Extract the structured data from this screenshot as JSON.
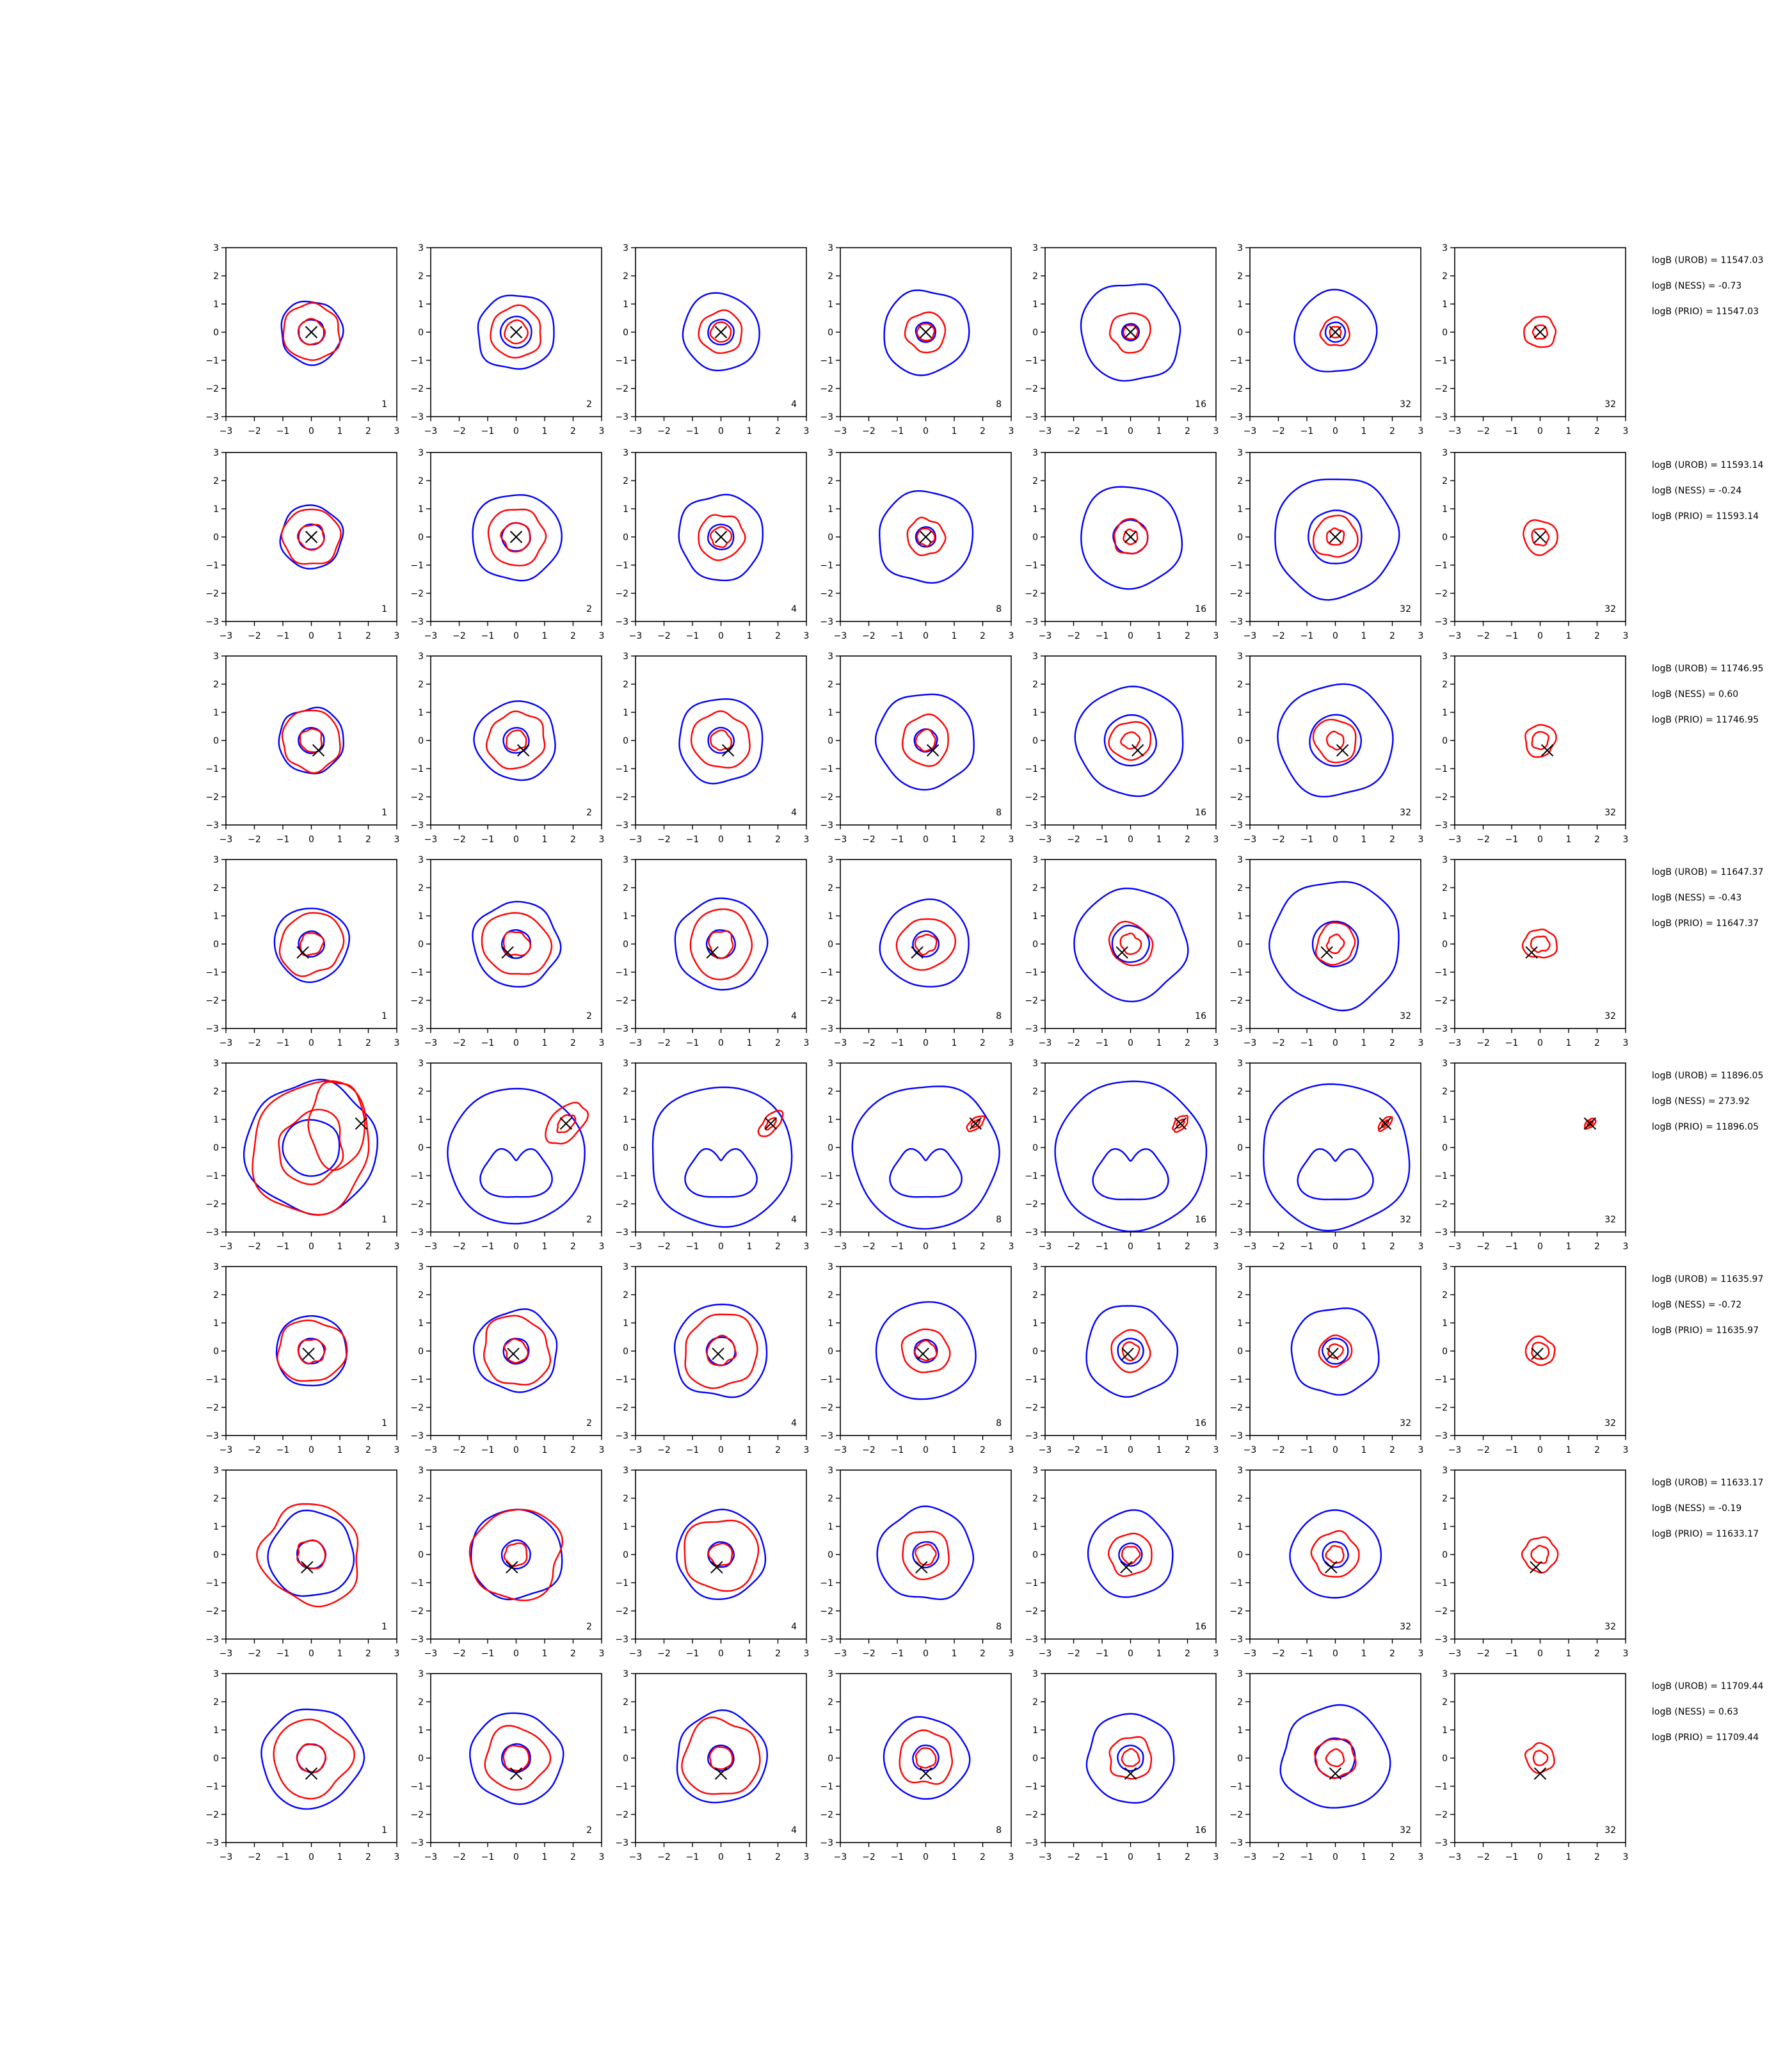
{
  "chart_data": {
    "type": "contour-grid",
    "xlim": [
      -3,
      3
    ],
    "ylim": [
      -3,
      3
    ],
    "ticks": [
      -3,
      -2,
      -1,
      0,
      1,
      2,
      3
    ],
    "tick_labels": [
      "−3",
      "−2",
      "−1",
      "0",
      "1",
      "2",
      "3"
    ],
    "grid": false,
    "series_colors": {
      "blue_contours": "#0000ff",
      "red_contours": "#ff0000",
      "marker": "#000000"
    },
    "column_labels": [
      "1",
      "2",
      "4",
      "8",
      "16",
      "32",
      "32"
    ],
    "rows": [
      {
        "marker": [
          0.0,
          0.0
        ],
        "annotations": [
          "logB (UROB) = 11547.03",
          "logB (NESS) = -0.73",
          "logB (PRIO) = 11547.03"
        ],
        "panels": [
          {
            "blue": [
              0.45,
              1.1
            ],
            "red": [
              0.45,
              1.0
            ],
            "blue_shape": "circle"
          },
          {
            "blue": [
              0.55,
              1.35
            ],
            "red": [
              0.4,
              0.9
            ],
            "blue_shape": "circle"
          },
          {
            "blue": [
              0.45,
              1.35
            ],
            "red": [
              0.35,
              0.75
            ],
            "blue_shape": "circle"
          },
          {
            "blue": [
              0.35,
              1.5
            ],
            "red": [
              0.3,
              0.7
            ],
            "blue_shape": "circle"
          },
          {
            "blue": [
              0.3,
              1.75
            ],
            "red": [
              0.25,
              0.7
            ],
            "blue_shape": "circle"
          },
          {
            "blue": [
              0.35,
              1.45
            ],
            "red": [
              0.2,
              0.5
            ],
            "blue_shape": "circle"
          },
          {
            "blue": [],
            "red": [
              0.25,
              0.55
            ],
            "blue_shape": "none"
          }
        ]
      },
      {
        "marker": [
          0.0,
          0.0
        ],
        "annotations": [
          "logB (UROB) = 11593.14",
          "logB (NESS) = -0.24",
          "logB (PRIO) = 11593.14"
        ],
        "panels": [
          {
            "blue": [
              0.45,
              1.1
            ],
            "red": [
              0.45,
              1.0
            ],
            "blue_shape": "circle"
          },
          {
            "blue": [
              0.5,
              1.55
            ],
            "red": [
              0.5,
              1.0
            ],
            "blue_shape": "circle"
          },
          {
            "blue": [
              0.45,
              1.5
            ],
            "red": [
              0.35,
              0.8
            ],
            "blue_shape": "circle"
          },
          {
            "blue": [
              0.35,
              1.65
            ],
            "red": [
              0.3,
              0.65
            ],
            "blue_shape": "circle"
          },
          {
            "blue": [
              0.6,
              1.8
            ],
            "red": [
              0.25,
              0.6
            ],
            "blue_shape": "circle"
          },
          {
            "blue": [
              0.95,
              2.15
            ],
            "red": [
              0.3,
              0.75
            ],
            "blue_shape": "circle"
          },
          {
            "blue": [],
            "red": [
              0.3,
              0.6
            ],
            "blue_shape": "none"
          }
        ]
      },
      {
        "marker": [
          0.25,
          -0.35
        ],
        "annotations": [
          "logB (UROB) = 11746.95",
          "logB (NESS) = 0.60",
          "logB (PRIO) = 11746.95"
        ],
        "panels": [
          {
            "blue": [
              0.45,
              1.15
            ],
            "red": [
              0.4,
              1.05
            ],
            "blue_shape": "circle"
          },
          {
            "blue": [
              0.45,
              1.4
            ],
            "red": [
              0.35,
              1.0
            ],
            "blue_shape": "circle"
          },
          {
            "blue": [
              0.45,
              1.5
            ],
            "red": [
              0.35,
              1.0
            ],
            "blue_shape": "circle"
          },
          {
            "blue": [
              0.4,
              1.7
            ],
            "red": [
              0.35,
              0.85
            ],
            "blue_shape": "circle"
          },
          {
            "blue": [
              0.9,
              1.9
            ],
            "red": [
              0.3,
              0.7
            ],
            "blue_shape": "circle"
          },
          {
            "blue": [
              0.9,
              2.0
            ],
            "red": [
              0.3,
              0.75
            ],
            "blue_shape": "circle"
          },
          {
            "blue": [],
            "red": [
              0.3,
              0.55
            ],
            "blue_shape": "none"
          }
        ]
      },
      {
        "marker": [
          -0.3,
          -0.3
        ],
        "annotations": [
          "logB (UROB) = 11647.37",
          "logB (NESS) = -0.43",
          "logB (PRIO) = 11647.37"
        ],
        "panels": [
          {
            "blue": [
              0.45,
              1.3
            ],
            "red": [
              0.4,
              1.1
            ],
            "blue_shape": "circle"
          },
          {
            "blue": [
              0.5,
              1.5
            ],
            "red": [
              0.45,
              1.15
            ],
            "blue_shape": "circle"
          },
          {
            "blue": [
              0.5,
              1.6
            ],
            "red": [
              0.45,
              1.15
            ],
            "blue_shape": "circle"
          },
          {
            "blue": [
              0.45,
              1.55
            ],
            "red": [
              0.35,
              0.95
            ],
            "blue_shape": "circle"
          },
          {
            "blue": [
              0.65,
              1.95
            ],
            "red": [
              0.35,
              0.75
            ],
            "blue_shape": "circle"
          },
          {
            "blue": [
              0.8,
              2.25
            ],
            "red": [
              0.3,
              0.7
            ],
            "blue_shape": "circle"
          },
          {
            "blue": [],
            "red": [
              0.3,
              0.55
            ],
            "blue_shape": "none"
          }
        ]
      },
      {
        "marker": [
          1.75,
          0.85
        ],
        "annotations": [
          "logB (UROB) = 11896.05",
          "logB (NESS) = 273.92",
          "logB (PRIO) = 11896.05"
        ],
        "panels": [
          {
            "blue": [
              1.0,
              2.3
            ],
            "red": [
              1.2,
              2.2
            ],
            "blue_shape": "circle"
          },
          {
            "blue": [
              1.0,
              2.4
            ],
            "red": [
              0.35,
              0.8
            ],
            "blue_shape": "bean"
          },
          {
            "blue": [
              1.0,
              2.5
            ],
            "red": [
              0.2,
              0.45
            ],
            "blue_shape": "bean"
          },
          {
            "blue": [
              1.0,
              2.55
            ],
            "red": [
              0.15,
              0.3
            ],
            "blue_shape": "bean"
          },
          {
            "blue": [
              1.05,
              2.65
            ],
            "red": [
              0.15,
              0.3
            ],
            "blue_shape": "bean"
          },
          {
            "blue": [
              1.05,
              2.6
            ],
            "red": [
              0.12,
              0.25
            ],
            "blue_shape": "bean"
          },
          {
            "blue": [],
            "red": [
              0.1,
              0.2
            ],
            "blue_shape": "none"
          }
        ]
      },
      {
        "marker": [
          -0.1,
          -0.1
        ],
        "annotations": [
          "logB (UROB) = 11635.97",
          "logB (NESS) = -0.72",
          "logB (PRIO) = 11635.97"
        ],
        "panels": [
          {
            "blue": [
              0.45,
              1.25
            ],
            "red": [
              0.45,
              1.15
            ],
            "blue_shape": "circle"
          },
          {
            "blue": [
              0.45,
              1.45
            ],
            "red": [
              0.4,
              1.2
            ],
            "blue_shape": "circle"
          },
          {
            "blue": [
              0.5,
              1.65
            ],
            "red": [
              0.5,
              1.3
            ],
            "blue_shape": "circle"
          },
          {
            "blue": [
              0.4,
              1.75
            ],
            "red": [
              0.35,
              0.8
            ],
            "blue_shape": "circle"
          },
          {
            "blue": [
              0.45,
              1.6
            ],
            "red": [
              0.3,
              0.7
            ],
            "blue_shape": "circle"
          },
          {
            "blue": [
              0.45,
              1.55
            ],
            "red": [
              0.25,
              0.55
            ],
            "blue_shape": "circle"
          },
          {
            "blue": [],
            "red": [
              0.3,
              0.5
            ],
            "blue_shape": "none"
          }
        ]
      },
      {
        "marker": [
          -0.15,
          -0.45
        ],
        "annotations": [
          "logB (UROB) = 11633.17",
          "logB (NESS) = -0.19",
          "logB (PRIO) = 11633.17"
        ],
        "panels": [
          {
            "blue": [
              0.5,
              1.5
            ],
            "red": [
              0.5,
              1.75
            ],
            "blue_shape": "circle"
          },
          {
            "blue": [
              0.5,
              1.6
            ],
            "red": [
              0.4,
              1.6
            ],
            "blue_shape": "circle"
          },
          {
            "blue": [
              0.45,
              1.55
            ],
            "red": [
              0.4,
              1.3
            ],
            "blue_shape": "circle"
          },
          {
            "blue": [
              0.45,
              1.65
            ],
            "red": [
              0.35,
              0.85
            ],
            "blue_shape": "circle"
          },
          {
            "blue": [
              0.4,
              1.5
            ],
            "red": [
              0.3,
              0.75
            ],
            "blue_shape": "circle"
          },
          {
            "blue": [
              0.45,
              1.55
            ],
            "red": [
              0.3,
              0.8
            ],
            "blue_shape": "circle"
          },
          {
            "blue": [],
            "red": [
              0.3,
              0.6
            ],
            "blue_shape": "none"
          }
        ]
      },
      {
        "marker": [
          0.0,
          -0.55
        ],
        "annotations": [
          "logB (UROB) = 11709.44",
          "logB (NESS) = 0.63",
          "logB (PRIO) = 11709.44"
        ],
        "panels": [
          {
            "blue": [
              0.5,
              1.75
            ],
            "red": [
              0.5,
              1.35
            ],
            "blue_shape": "circle"
          },
          {
            "blue": [
              0.5,
              1.6
            ],
            "red": [
              0.45,
              1.1
            ],
            "blue_shape": "circle"
          },
          {
            "blue": [
              0.45,
              1.6
            ],
            "red": [
              0.4,
              1.35
            ],
            "blue_shape": "circle"
          },
          {
            "blue": [
              0.45,
              1.45
            ],
            "red": [
              0.35,
              0.95
            ],
            "blue_shape": "circle"
          },
          {
            "blue": [
              0.45,
              1.55
            ],
            "red": [
              0.3,
              0.75
            ],
            "blue_shape": "circle"
          },
          {
            "blue": [
              0.7,
              1.85
            ],
            "red": [
              0.3,
              0.7
            ],
            "blue_shape": "circle"
          },
          {
            "blue": [],
            "red": [
              0.25,
              0.5
            ],
            "blue_shape": "none"
          }
        ]
      }
    ]
  }
}
